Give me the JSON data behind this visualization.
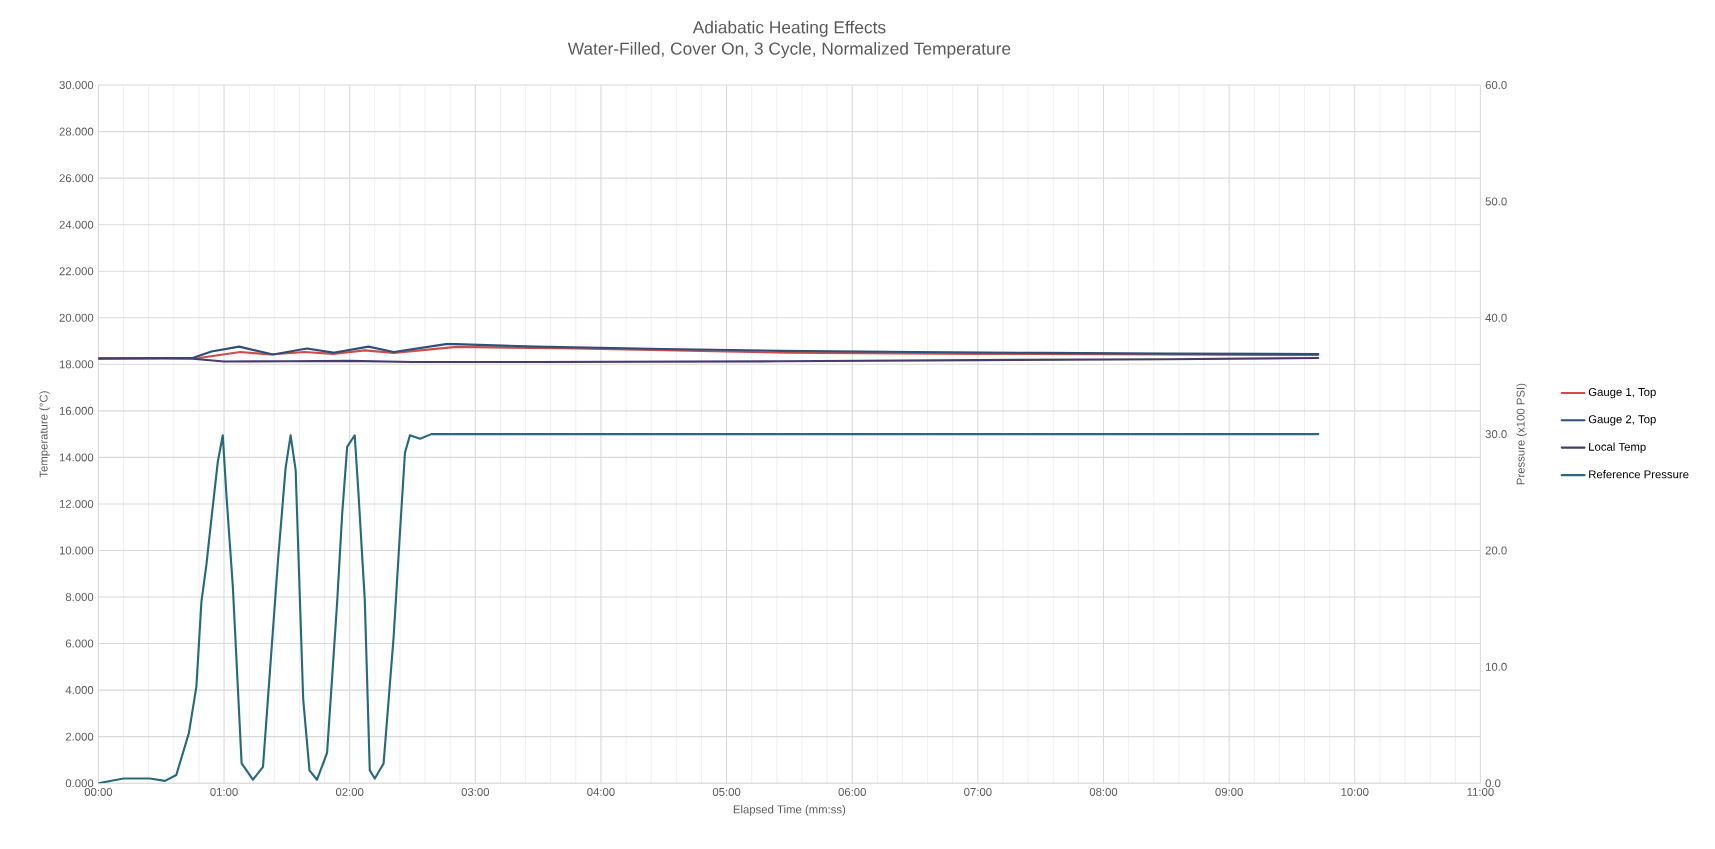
{
  "chart_data": {
    "type": "line",
    "title": "Adiabatic Heating Effects",
    "subtitle": "Water-Filled, Cover On,  3 Cycle, Normalized Temperature",
    "xlabel": "Elapsed Time (mm:ss)",
    "ylabel": "Temperature (°C)",
    "y2label": "Pressure (x100 PSI)",
    "xlim": [
      0,
      11
    ],
    "ylim": [
      0,
      30
    ],
    "y2lim": [
      0,
      60
    ],
    "xticks": [
      {
        "value": 0,
        "label": "00:00"
      },
      {
        "value": 1,
        "label": "01:00"
      },
      {
        "value": 2,
        "label": "02:00"
      },
      {
        "value": 3,
        "label": "03:00"
      },
      {
        "value": 4,
        "label": "04:00"
      },
      {
        "value": 5,
        "label": "05:00"
      },
      {
        "value": 6,
        "label": "06:00"
      },
      {
        "value": 7,
        "label": "07:00"
      },
      {
        "value": 8,
        "label": "08:00"
      },
      {
        "value": 9,
        "label": "09:00"
      },
      {
        "value": 10,
        "label": "10:00"
      },
      {
        "value": 11,
        "label": "11:00"
      }
    ],
    "yticks": [
      {
        "value": 0,
        "label": "0.000"
      },
      {
        "value": 2,
        "label": "2.000"
      },
      {
        "value": 4,
        "label": "4.000"
      },
      {
        "value": 6,
        "label": "6.000"
      },
      {
        "value": 8,
        "label": "8.000"
      },
      {
        "value": 10,
        "label": "10.000"
      },
      {
        "value": 12,
        "label": "12.000"
      },
      {
        "value": 14,
        "label": "14.000"
      },
      {
        "value": 16,
        "label": "16.000"
      },
      {
        "value": 18,
        "label": "18.000"
      },
      {
        "value": 20,
        "label": "20.000"
      },
      {
        "value": 22,
        "label": "22.000"
      },
      {
        "value": 24,
        "label": "24.000"
      },
      {
        "value": 26,
        "label": "26.000"
      },
      {
        "value": 28,
        "label": "28.000"
      },
      {
        "value": 30,
        "label": "30.000"
      }
    ],
    "y2ticks": [
      {
        "value": 0,
        "label": "0.0"
      },
      {
        "value": 10,
        "label": "10.0"
      },
      {
        "value": 20,
        "label": "20.0"
      },
      {
        "value": 30,
        "label": "30.0"
      },
      {
        "value": 40,
        "label": "40.0"
      },
      {
        "value": 50,
        "label": "50.0"
      },
      {
        "value": 60,
        "label": "60.0"
      }
    ],
    "grid": true,
    "legend": "right",
    "series": [
      {
        "name": "Gauge 1, Top",
        "color": "#cc4e4a",
        "x": [
          0,
          0.5,
          0.8,
          1.13,
          1.37,
          1.64,
          1.87,
          2.12,
          2.35,
          2.85,
          3.8,
          5.47,
          7.0,
          8.5,
          9.71
        ],
        "values": [
          18.25,
          null,
          18.27,
          18.53,
          18.42,
          18.53,
          18.45,
          18.6,
          18.49,
          18.75,
          18.68,
          18.5,
          18.45,
          18.42,
          18.4
        ]
      },
      {
        "name": "Gauge 2, Top",
        "color": "#2e4f7a",
        "x": [
          0,
          0.5,
          0.75,
          0.9,
          1.12,
          1.39,
          1.66,
          1.87,
          2.15,
          2.35,
          2.78,
          3.48,
          4.5,
          5.43,
          6.5,
          7.5,
          8.5,
          9.71
        ],
        "values": [
          18.25,
          18.27,
          18.27,
          18.55,
          18.76,
          18.42,
          18.68,
          18.5,
          18.76,
          18.53,
          18.88,
          18.76,
          18.66,
          18.58,
          18.53,
          18.49,
          18.46,
          18.44
        ]
      },
      {
        "name": "Local Temp",
        "color": "#4a3a6b",
        "x": [
          0,
          0.5,
          0.75,
          1.0,
          1.5,
          2.0,
          2.5,
          3.5,
          5.43,
          7.0,
          8.5,
          9.71
        ],
        "values": [
          18.25,
          18.25,
          18.24,
          18.12,
          18.13,
          18.15,
          18.1,
          18.1,
          18.13,
          18.18,
          18.22,
          18.27
        ]
      },
      {
        "name": "Reference Pressure",
        "color": "#256b7d",
        "axis": "y2",
        "x": [
          0,
          0.2,
          0.41,
          0.53,
          0.62,
          0.72,
          0.78,
          0.82,
          0.86,
          0.89,
          0.95,
          0.99,
          1.02,
          1.07,
          1.14,
          1.23,
          1.31,
          1.43,
          1.49,
          1.53,
          1.57,
          1.63,
          1.68,
          1.74,
          1.82,
          1.9,
          1.94,
          1.98,
          2.04,
          2.07,
          2.12,
          2.16,
          2.2,
          2.27,
          2.35,
          2.4,
          2.44,
          2.48,
          2.56,
          2.65,
          6.0,
          9.71
        ],
        "values": [
          0.0,
          0.4,
          0.4,
          0.2,
          0.7,
          4.3,
          8.3,
          15.6,
          18.8,
          21.8,
          27.6,
          29.9,
          24.6,
          16.9,
          1.7,
          0.3,
          1.4,
          19.2,
          27.1,
          29.9,
          26.9,
          7.2,
          1.1,
          0.3,
          2.6,
          15.5,
          23.1,
          28.9,
          29.9,
          24.9,
          15.8,
          1.1,
          0.4,
          1.7,
          12.6,
          21.5,
          28.4,
          29.9,
          29.6,
          30.0,
          30.0,
          30.0
        ]
      }
    ]
  }
}
